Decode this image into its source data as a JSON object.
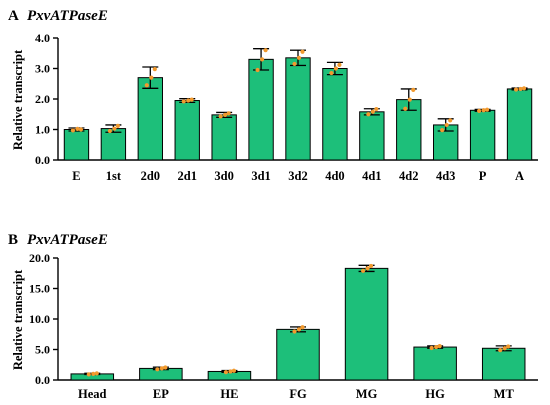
{
  "chart_data": [
    {
      "type": "bar",
      "panel_label": "A",
      "title": "PxvATPaseE",
      "ylabel": "Relative transcript",
      "xlabel": "",
      "ylim": [
        0,
        4
      ],
      "yticks": [
        "0.0",
        "1.0",
        "2.0",
        "3.0",
        "4.0"
      ],
      "categories": [
        "E",
        "1st",
        "2d0",
        "2d1",
        "3d0",
        "3d1",
        "3d2",
        "4d0",
        "4d1",
        "4d2",
        "4d3",
        "P",
        "A"
      ],
      "values": [
        1.0,
        1.03,
        2.7,
        1.95,
        1.48,
        3.3,
        3.35,
        3.0,
        1.58,
        1.98,
        1.15,
        1.63,
        2.33
      ],
      "errors": [
        0.05,
        0.12,
        0.35,
        0.06,
        0.08,
        0.35,
        0.25,
        0.2,
        0.1,
        0.35,
        0.2,
        0.03,
        0.03
      ],
      "replicates": [
        [
          0.97,
          1.02,
          1.0
        ],
        [
          0.95,
          1.03,
          1.12
        ],
        [
          2.45,
          2.7,
          2.98
        ],
        [
          1.92,
          1.95,
          1.98
        ],
        [
          1.43,
          1.48,
          1.53
        ],
        [
          2.95,
          3.3,
          3.6
        ],
        [
          3.15,
          3.35,
          3.55
        ],
        [
          2.85,
          3.0,
          3.12
        ],
        [
          1.5,
          1.58,
          1.67
        ],
        [
          1.68,
          1.98,
          2.3
        ],
        [
          0.98,
          1.15,
          1.3
        ],
        [
          1.61,
          1.63,
          1.65
        ],
        [
          2.31,
          2.33,
          2.35
        ]
      ],
      "colors": {
        "bar": "#1dbf7a",
        "dot": "#f29a2e",
        "axis": "#000000"
      }
    },
    {
      "type": "bar",
      "panel_label": "B",
      "title": "PxvATPaseE",
      "ylabel": "Relative transcript",
      "xlabel": "",
      "ylim": [
        0,
        20
      ],
      "yticks": [
        "0.0",
        "5.0",
        "10.0",
        "15.0",
        "20.0"
      ],
      "categories": [
        "Head",
        "EP",
        "HE",
        "FG",
        "MG",
        "HG",
        "MT"
      ],
      "values": [
        1.0,
        1.9,
        1.4,
        8.3,
        18.3,
        5.4,
        5.2
      ],
      "errors": [
        0.1,
        0.2,
        0.15,
        0.4,
        0.5,
        0.2,
        0.4
      ],
      "replicates": [
        [
          0.92,
          1.0,
          1.08
        ],
        [
          1.75,
          1.9,
          2.05
        ],
        [
          1.28,
          1.4,
          1.52
        ],
        [
          7.95,
          8.3,
          8.65
        ],
        [
          17.9,
          18.3,
          18.7
        ],
        [
          5.25,
          5.4,
          5.55
        ],
        [
          4.9,
          5.2,
          5.5
        ]
      ],
      "colors": {
        "bar": "#1dbf7a",
        "dot": "#f29a2e",
        "axis": "#000000"
      }
    }
  ]
}
